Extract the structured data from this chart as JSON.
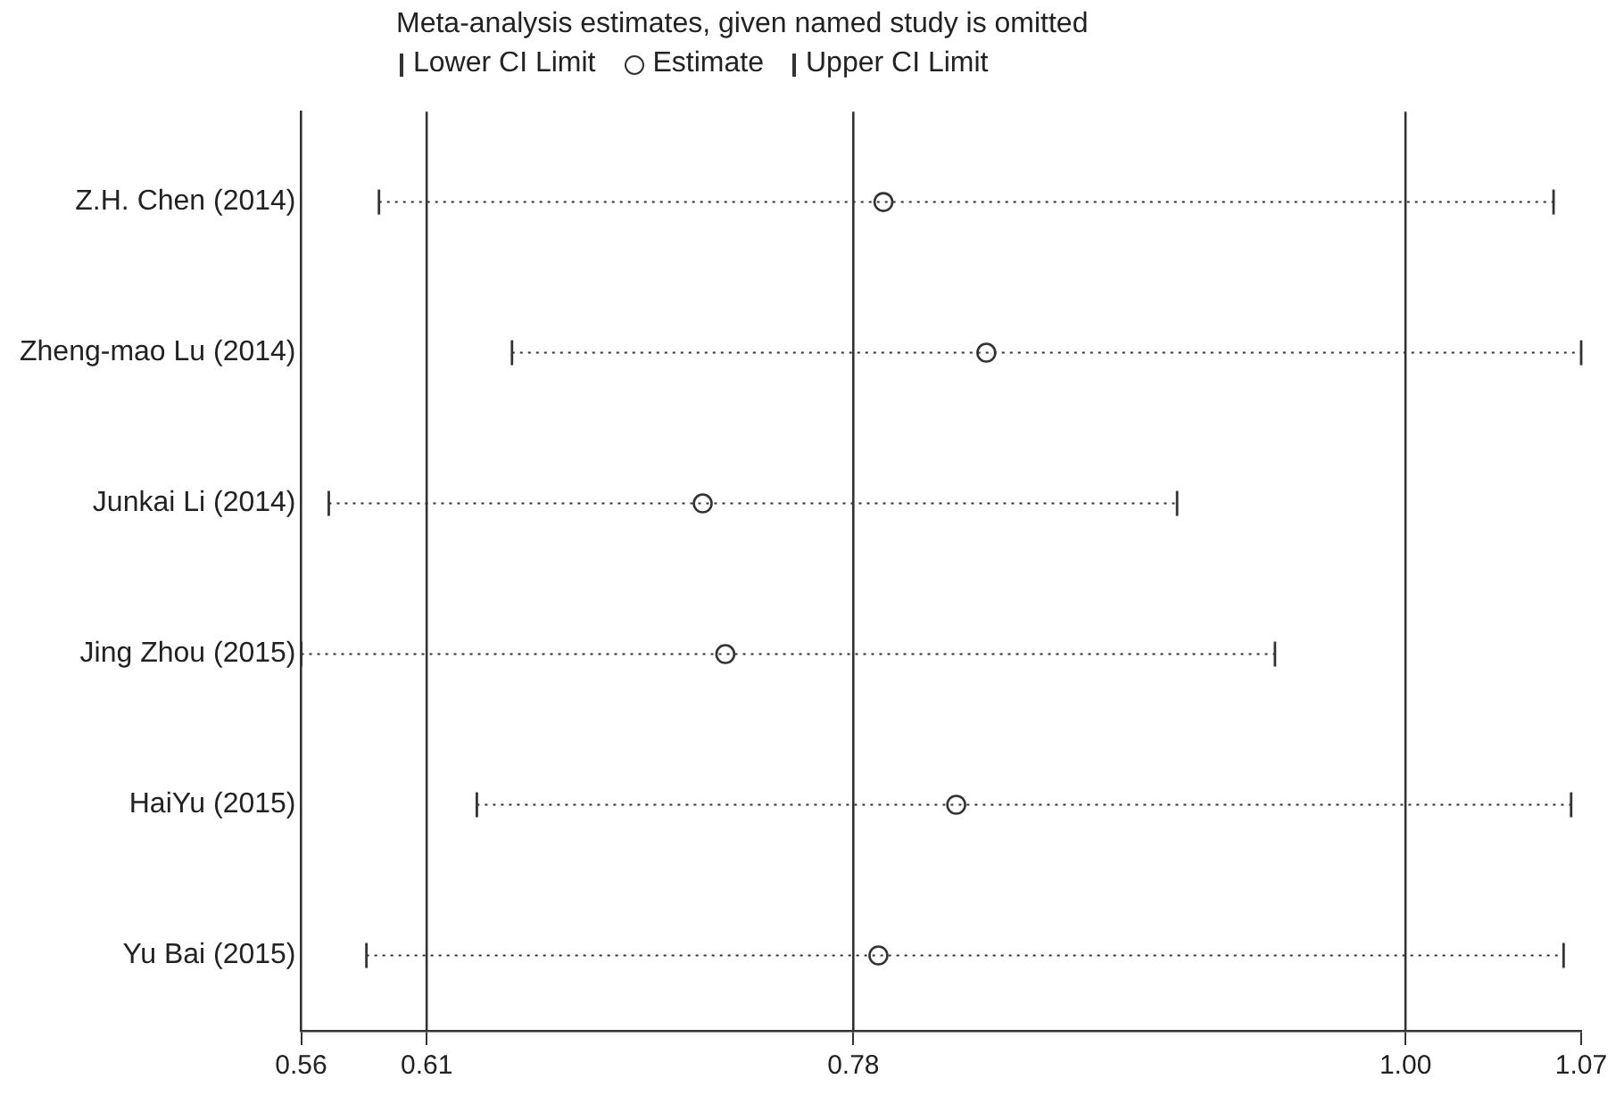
{
  "chart_data": {
    "type": "scatter",
    "orientation": "horizontal",
    "title": "Meta-analysis estimates, given named study is omitted",
    "categories": [
      "Z.H. Chen (2014)",
      "Zheng-mao Lu (2014)",
      "Junkai Li (2014)",
      "Jing Zhou (2015)",
      "HaiYu (2015)",
      "Yu Bai (2015)"
    ],
    "series": [
      {
        "name": "Estimate",
        "color": "#333333",
        "values": [
          0.792,
          0.833,
          0.72,
          0.729,
          0.821,
          0.79
        ],
        "errors": [
          [
            0.591,
            1.059
          ],
          [
            0.644,
            1.07
          ],
          [
            0.571,
            0.909
          ],
          [
            0.56,
            0.948
          ],
          [
            0.63,
            1.066
          ],
          [
            0.586,
            1.063
          ]
        ]
      }
    ],
    "annotations": [
      "Lower CI Limit",
      "Upper CI Limit"
    ],
    "marker": "circle",
    "xlim": [
      0.56,
      1.07
    ],
    "xticks": [
      0.56,
      0.61,
      0.78,
      {
        "value": 1.0,
        "label": "1.00"
      },
      1.07
    ],
    "ref_lines": [
      {
        "axis": "x",
        "value": 0.61,
        "color": "#333333"
      },
      {
        "axis": "x",
        "value": 0.78,
        "color": "#333333"
      },
      {
        "axis": "x",
        "value": 1.0,
        "color": "#333333"
      }
    ],
    "legend": "top left"
  }
}
